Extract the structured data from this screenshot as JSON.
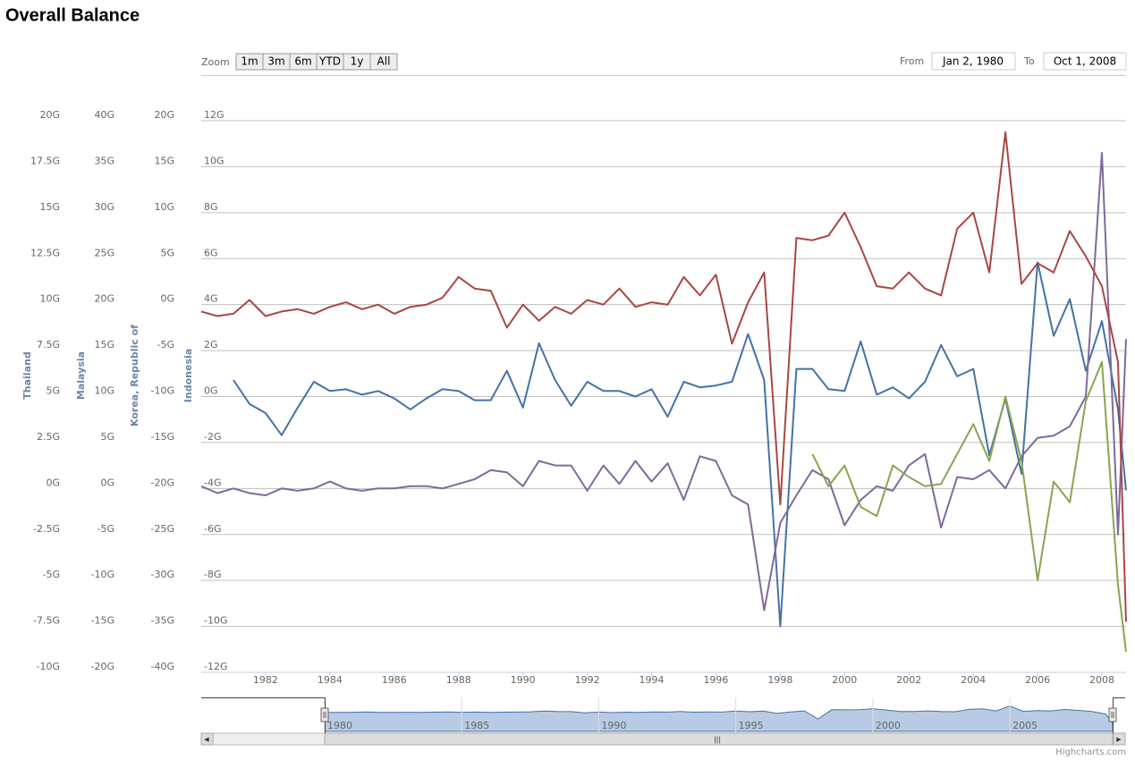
{
  "header": {
    "title": "Overall Balance"
  },
  "range_selector": {
    "zoom_label": "Zoom",
    "buttons": [
      "1m",
      "3m",
      "6m",
      "YTD",
      "1y",
      "All"
    ],
    "from_label": "From",
    "from": "Jan 2, 1980",
    "to_label": "To",
    "to": "Oct 1, 2008"
  },
  "credits": "Highcharts.com",
  "chart_data": {
    "type": "line",
    "x": [
      1980,
      1980.5,
      1981,
      1981.5,
      1982,
      1982.5,
      1983,
      1983.5,
      1984,
      1984.5,
      1985,
      1985.5,
      1986,
      1986.5,
      1987,
      1987.5,
      1988,
      1988.5,
      1989,
      1989.5,
      1990,
      1990.5,
      1991,
      1991.5,
      1992,
      1992.5,
      1993,
      1993.5,
      1994,
      1994.5,
      1995,
      1995.5,
      1996,
      1996.5,
      1997,
      1997.5,
      1998,
      1998.5,
      1999,
      1999.5,
      2000,
      2000.5,
      2001,
      2001.5,
      2002,
      2002.5,
      2003,
      2003.5,
      2004,
      2004.5,
      2005,
      2005.5,
      2006,
      2006.5,
      2007,
      2007.5,
      2008,
      2008.5,
      2008.75
    ],
    "xlim": [
      1980,
      2008.75
    ],
    "xticks": [
      1982,
      1984,
      1986,
      1988,
      1990,
      1992,
      1994,
      1996,
      1998,
      2000,
      2002,
      2004,
      2006,
      2008
    ],
    "grid": true,
    "y_axes": [
      {
        "title": "Thailand",
        "ylim": [
          -10,
          20
        ],
        "yticks": [
          {
            "value": 20,
            "label": "20G"
          },
          {
            "value": 17.5,
            "label": "17.5G"
          },
          {
            "value": 15,
            "label": "15G"
          },
          {
            "value": 12.5,
            "label": "12.5G"
          },
          {
            "value": 10,
            "label": "10G"
          },
          {
            "value": 7.5,
            "label": "7.5G"
          },
          {
            "value": 5,
            "label": "5G"
          },
          {
            "value": 2.5,
            "label": "2.5G"
          },
          {
            "value": 0,
            "label": "0G"
          },
          {
            "value": -2.5,
            "label": "-2.5G"
          },
          {
            "value": -5,
            "label": "-5G"
          },
          {
            "value": -7.5,
            "label": "-7.5G"
          },
          {
            "value": -10,
            "label": "-10G"
          }
        ]
      },
      {
        "title": "Malaysia",
        "ylim": [
          -20,
          40
        ],
        "yticks": [
          {
            "value": 40,
            "label": "40G"
          },
          {
            "value": 35,
            "label": "35G"
          },
          {
            "value": 30,
            "label": "30G"
          },
          {
            "value": 25,
            "label": "25G"
          },
          {
            "value": 20,
            "label": "20G"
          },
          {
            "value": 15,
            "label": "15G"
          },
          {
            "value": 10,
            "label": "10G"
          },
          {
            "value": 5,
            "label": "5G"
          },
          {
            "value": 0,
            "label": "0G"
          },
          {
            "value": -5,
            "label": "-5G"
          },
          {
            "value": -10,
            "label": "-10G"
          },
          {
            "value": -15,
            "label": "-15G"
          },
          {
            "value": -20,
            "label": "-20G"
          }
        ]
      },
      {
        "title": "Korea, Republic of",
        "ylim": [
          -40,
          20
        ],
        "yticks": [
          {
            "value": 20,
            "label": "20G"
          },
          {
            "value": 15,
            "label": "15G"
          },
          {
            "value": 10,
            "label": "10G"
          },
          {
            "value": 5,
            "label": "5G"
          },
          {
            "value": 0,
            "label": "0G"
          },
          {
            "value": -5,
            "label": "-5G"
          },
          {
            "value": -10,
            "label": "-10G"
          },
          {
            "value": -15,
            "label": "-15G"
          },
          {
            "value": -20,
            "label": "-20G"
          },
          {
            "value": -25,
            "label": "-25G"
          },
          {
            "value": -30,
            "label": "-30G"
          },
          {
            "value": -35,
            "label": "-35G"
          },
          {
            "value": -40,
            "label": "-40G"
          }
        ]
      },
      {
        "title": "Indonesia",
        "ylim": [
          -12,
          12
        ],
        "yticks": [
          {
            "value": 12,
            "label": "12G"
          },
          {
            "value": 10,
            "label": "10G"
          },
          {
            "value": 8,
            "label": "8G"
          },
          {
            "value": 6,
            "label": "6G"
          },
          {
            "value": 4,
            "label": "4G"
          },
          {
            "value": 2,
            "label": "2G"
          },
          {
            "value": 0,
            "label": "0G"
          },
          {
            "value": -2,
            "label": "-2G"
          },
          {
            "value": -4,
            "label": "-4G"
          },
          {
            "value": -6,
            "label": "-6G"
          },
          {
            "value": -8,
            "label": "-8G"
          },
          {
            "value": -10,
            "label": "-10G"
          },
          {
            "value": -12,
            "label": "-12G"
          }
        ]
      }
    ],
    "series": [
      {
        "axis": 0,
        "color": "#4572A7",
        "values": [
          null,
          null,
          5.9,
          4.6,
          4.1,
          2.9,
          4.4,
          5.8,
          5.3,
          5.4,
          5.1,
          5.3,
          4.9,
          4.3,
          4.9,
          5.4,
          5.3,
          4.8,
          4.8,
          6.4,
          4.4,
          7.9,
          5.9,
          4.5,
          5.8,
          5.3,
          5.3,
          5.0,
          5.4,
          3.9,
          5.8,
          5.5,
          5.6,
          5.8,
          8.4,
          5.9,
          -7.5,
          6.5,
          6.5,
          5.4,
          5.3,
          8.0,
          5.1,
          5.5,
          4.9,
          5.8,
          7.8,
          6.1,
          6.5,
          1.8,
          4.9,
          0.8,
          12.3,
          8.3,
          10.3,
          6.4,
          9.1,
          4.3,
          -0.1
        ]
      },
      {
        "axis": 1,
        "color": "#80699B",
        "values": [
          0.25,
          -0.5,
          0,
          -0.5,
          -0.75,
          0,
          -0.25,
          0,
          0.75,
          0,
          -0.25,
          0,
          0,
          0.25,
          0.25,
          0,
          0.5,
          1,
          2,
          1.75,
          0.25,
          3,
          2.5,
          2.5,
          -0.25,
          2.5,
          0.5,
          3,
          0.75,
          2.75,
          -1.25,
          3.5,
          3,
          -0.75,
          -1.75,
          -13.25,
          -3.75,
          -0.75,
          2,
          1,
          -4,
          -1.25,
          0.25,
          -0.25,
          2.5,
          3.75,
          -4.25,
          1.25,
          1,
          2,
          0,
          3.5,
          5.5,
          5.75,
          6.75,
          10,
          36.5,
          -5,
          16.25
        ]
      },
      {
        "axis": 2,
        "color": "#89A54E",
        "values": [
          null,
          null,
          null,
          null,
          null,
          null,
          null,
          null,
          null,
          null,
          null,
          null,
          null,
          null,
          null,
          null,
          null,
          null,
          null,
          null,
          null,
          null,
          null,
          null,
          null,
          null,
          null,
          null,
          null,
          null,
          null,
          null,
          null,
          null,
          null,
          null,
          null,
          null,
          -16.25,
          -19.75,
          -17.5,
          -22,
          -23,
          -17.5,
          -18.75,
          -19.75,
          -19.5,
          -16.25,
          -13,
          -17,
          -10,
          -17,
          -30,
          -19.25,
          -21.5,
          -10.5,
          -6.25,
          -30.5,
          -37.75
        ]
      },
      {
        "axis": 3,
        "color": "#AA4643",
        "values": [
          3.7,
          3.5,
          3.6,
          4.2,
          3.5,
          3.7,
          3.8,
          3.6,
          3.9,
          4.1,
          3.8,
          4.0,
          3.6,
          3.9,
          4.0,
          4.3,
          5.2,
          4.7,
          4.6,
          3.0,
          4.0,
          3.3,
          3.9,
          3.6,
          4.2,
          4.0,
          4.7,
          3.9,
          4.1,
          4.0,
          5.2,
          4.4,
          5.3,
          2.3,
          4.1,
          5.4,
          -4.7,
          6.9,
          6.8,
          7.0,
          8.0,
          6.5,
          4.8,
          4.7,
          5.4,
          4.7,
          4.4,
          7.3,
          8.0,
          5.4,
          11.5,
          4.9,
          5.8,
          5.4,
          7.2,
          6.1,
          4.8,
          1.5,
          -9.8
        ]
      }
    ],
    "navigator": {
      "series": 3,
      "xticks": [
        1980,
        1985,
        1990,
        1995,
        2000,
        2005
      ]
    }
  }
}
